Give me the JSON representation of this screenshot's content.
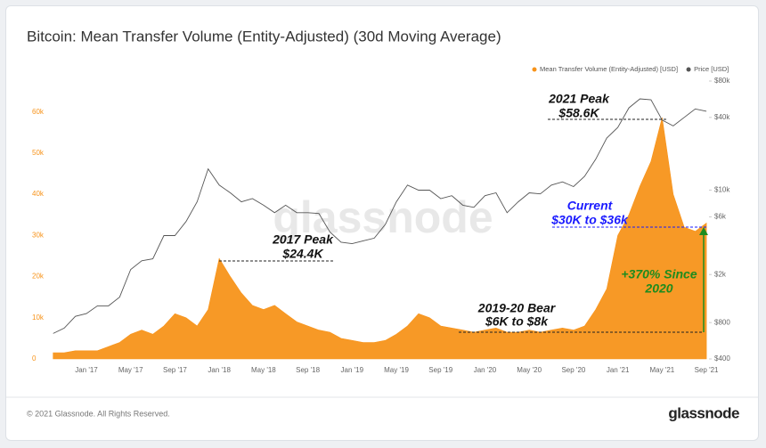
{
  "chart_data": {
    "type": "area-line",
    "title": "Bitcoin: Mean Transfer Volume (Entity-Adjusted) (30d Moving Average)",
    "categories": [
      null,
      null,
      null,
      "Jan '17",
      null,
      null,
      null,
      "May '17",
      null,
      null,
      null,
      "Sep '17",
      null,
      null,
      null,
      "Jan '18",
      null,
      null,
      null,
      "May '18",
      null,
      null,
      null,
      "Sep '18",
      null,
      null,
      null,
      "Jan '19",
      null,
      null,
      null,
      "May '19",
      null,
      null,
      null,
      "Sep '19",
      null,
      null,
      null,
      "Jan '20",
      null,
      null,
      null,
      "May '20",
      null,
      null,
      null,
      "Sep '20",
      null,
      null,
      null,
      "Jan '21",
      null,
      null,
      null,
      "May '21",
      null,
      null,
      null,
      "Sep '21"
    ],
    "series": [
      {
        "name": "Mean Transfer Volume (Entity-Adjusted) [USD]",
        "color": "#f7931a",
        "axis": "y",
        "values": [
          1500,
          1500,
          2000,
          2000,
          2000,
          3000,
          4000,
          6000,
          7000,
          6000,
          8000,
          11000,
          10000,
          8000,
          12000,
          24400,
          20000,
          16000,
          13000,
          12000,
          13000,
          11000,
          9000,
          8000,
          7000,
          6500,
          5000,
          4500,
          4000,
          4000,
          4500,
          6000,
          8000,
          11000,
          10000,
          8000,
          7500,
          7000,
          6500,
          7000,
          7500,
          6500,
          6500,
          7000,
          6500,
          7000,
          7500,
          7000,
          8000,
          12000,
          17000,
          30000,
          35000,
          42000,
          48000,
          58600,
          40000,
          32000,
          31000,
          33000
        ]
      },
      {
        "name": "Price [USD]",
        "color": "#555555",
        "axis": "y2",
        "values": [
          650,
          720,
          900,
          950,
          1100,
          1100,
          1300,
          2200,
          2600,
          2700,
          4200,
          4200,
          5500,
          8000,
          15000,
          11000,
          9500,
          8000,
          8500,
          7500,
          6500,
          7500,
          6500,
          6500,
          6400,
          4500,
          3700,
          3600,
          3800,
          4000,
          5200,
          8000,
          11000,
          10000,
          10000,
          8500,
          9000,
          7500,
          7200,
          9000,
          9500,
          6500,
          8000,
          9500,
          9300,
          11000,
          11700,
          10700,
          13000,
          18000,
          27000,
          33000,
          48000,
          57000,
          56000,
          38000,
          34000,
          40000,
          47000,
          45000
        ]
      }
    ],
    "ylim": [
      0,
      67500
    ],
    "yticks": [
      0,
      {
        "value": 10000,
        "label": "10k"
      },
      {
        "value": 20000,
        "label": "20k"
      },
      {
        "value": 30000,
        "label": "30k"
      },
      {
        "value": 40000,
        "label": "40k"
      },
      {
        "value": 50000,
        "label": "50k"
      },
      {
        "value": 60000,
        "label": "60k"
      }
    ],
    "y2lim": [
      400,
      80000
    ],
    "y2scale": "log",
    "y2ticks": [
      {
        "value": 400,
        "label": "$400"
      },
      {
        "value": 800,
        "label": "$800"
      },
      {
        "value": 2000,
        "label": "$2k"
      },
      {
        "value": 6000,
        "label": "$6k"
      },
      {
        "value": 10000,
        "label": "$10k"
      },
      {
        "value": 40000,
        "label": "$40k"
      },
      {
        "value": 80000,
        "label": "$80k"
      }
    ],
    "legend": "top-right",
    "grid": false,
    "annotations": [
      {
        "lines": [
          "2021 Peak",
          "$58.6K"
        ],
        "color": "#111111"
      },
      {
        "lines": [
          "Current",
          "$30K to $36k"
        ],
        "color": "#1a1aff"
      },
      {
        "lines": [
          "2017 Peak",
          "$24.4K"
        ],
        "color": "#111111"
      },
      {
        "lines": [
          "2019-20 Bear",
          "$6K to $8k"
        ],
        "color": "#111111"
      },
      {
        "lines": [
          "+370% Since",
          "2020"
        ],
        "color": "#1e8c1e"
      }
    ]
  },
  "watermark": "glassnode",
  "footer": "© 2021 Glassnode. All Rights Reserved.",
  "brand": "glassnode"
}
